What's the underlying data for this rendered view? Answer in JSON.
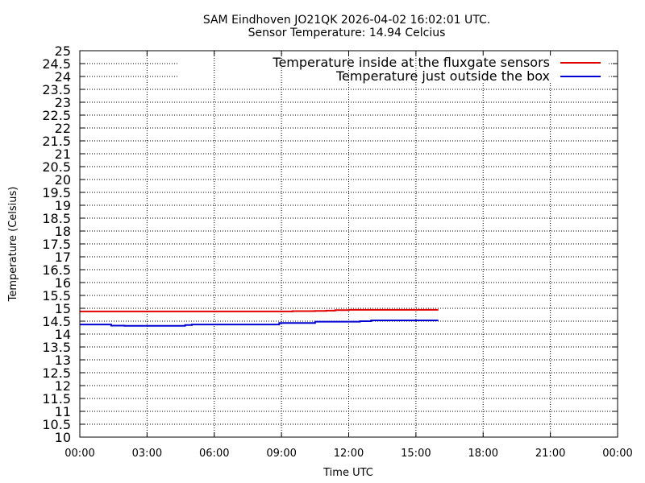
{
  "chart_data": {
    "type": "line",
    "title": "SAM Eindhoven JO21QK 2026-04-02 16:02:01 UTC.",
    "subtitle": "Sensor Temperature: 14.94 Celcius",
    "xlabel": "Time UTC",
    "ylabel": "Temperature (Celsius)",
    "xlim": [
      0,
      24
    ],
    "ylim": [
      10,
      25
    ],
    "grid": true,
    "legend_placement": "top-right",
    "x_ticks": [
      "00:00",
      "03:00",
      "06:00",
      "09:00",
      "12:00",
      "15:00",
      "18:00",
      "21:00",
      "00:00"
    ],
    "y_ticks": [
      "10",
      "10.5",
      "11",
      "11.5",
      "12",
      "12.5",
      "13",
      "13.5",
      "14",
      "14.5",
      "15",
      "15.5",
      "16",
      "16.5",
      "17",
      "17.5",
      "18",
      "18.5",
      "19",
      "19.5",
      "20",
      "20.5",
      "21",
      "21.5",
      "22",
      "22.5",
      "23",
      "23.5",
      "24",
      "24.5",
      "25"
    ],
    "series": [
      {
        "name": "Temperature inside at the fluxgate sensors",
        "color": "#e00000",
        "x": [
          0.0,
          8.0,
          9.5,
          10.5,
          11.0,
          11.4,
          12.0,
          16.0
        ],
        "y": [
          14.88,
          14.88,
          14.89,
          14.9,
          14.91,
          14.93,
          14.94,
          14.94
        ]
      },
      {
        "name": "Temperature just outside the box",
        "color": "#0000d0",
        "x": [
          0.0,
          1.2,
          1.4,
          2.0,
          3.0,
          4.0,
          4.7,
          5.0,
          7.0,
          8.5,
          8.9,
          9.5,
          10.5,
          11.0,
          12.5,
          13.0,
          16.0
        ],
        "y": [
          14.37,
          14.37,
          14.33,
          14.32,
          14.32,
          14.32,
          14.35,
          14.37,
          14.37,
          14.37,
          14.43,
          14.43,
          14.48,
          14.48,
          14.5,
          14.53,
          14.53
        ]
      }
    ]
  }
}
